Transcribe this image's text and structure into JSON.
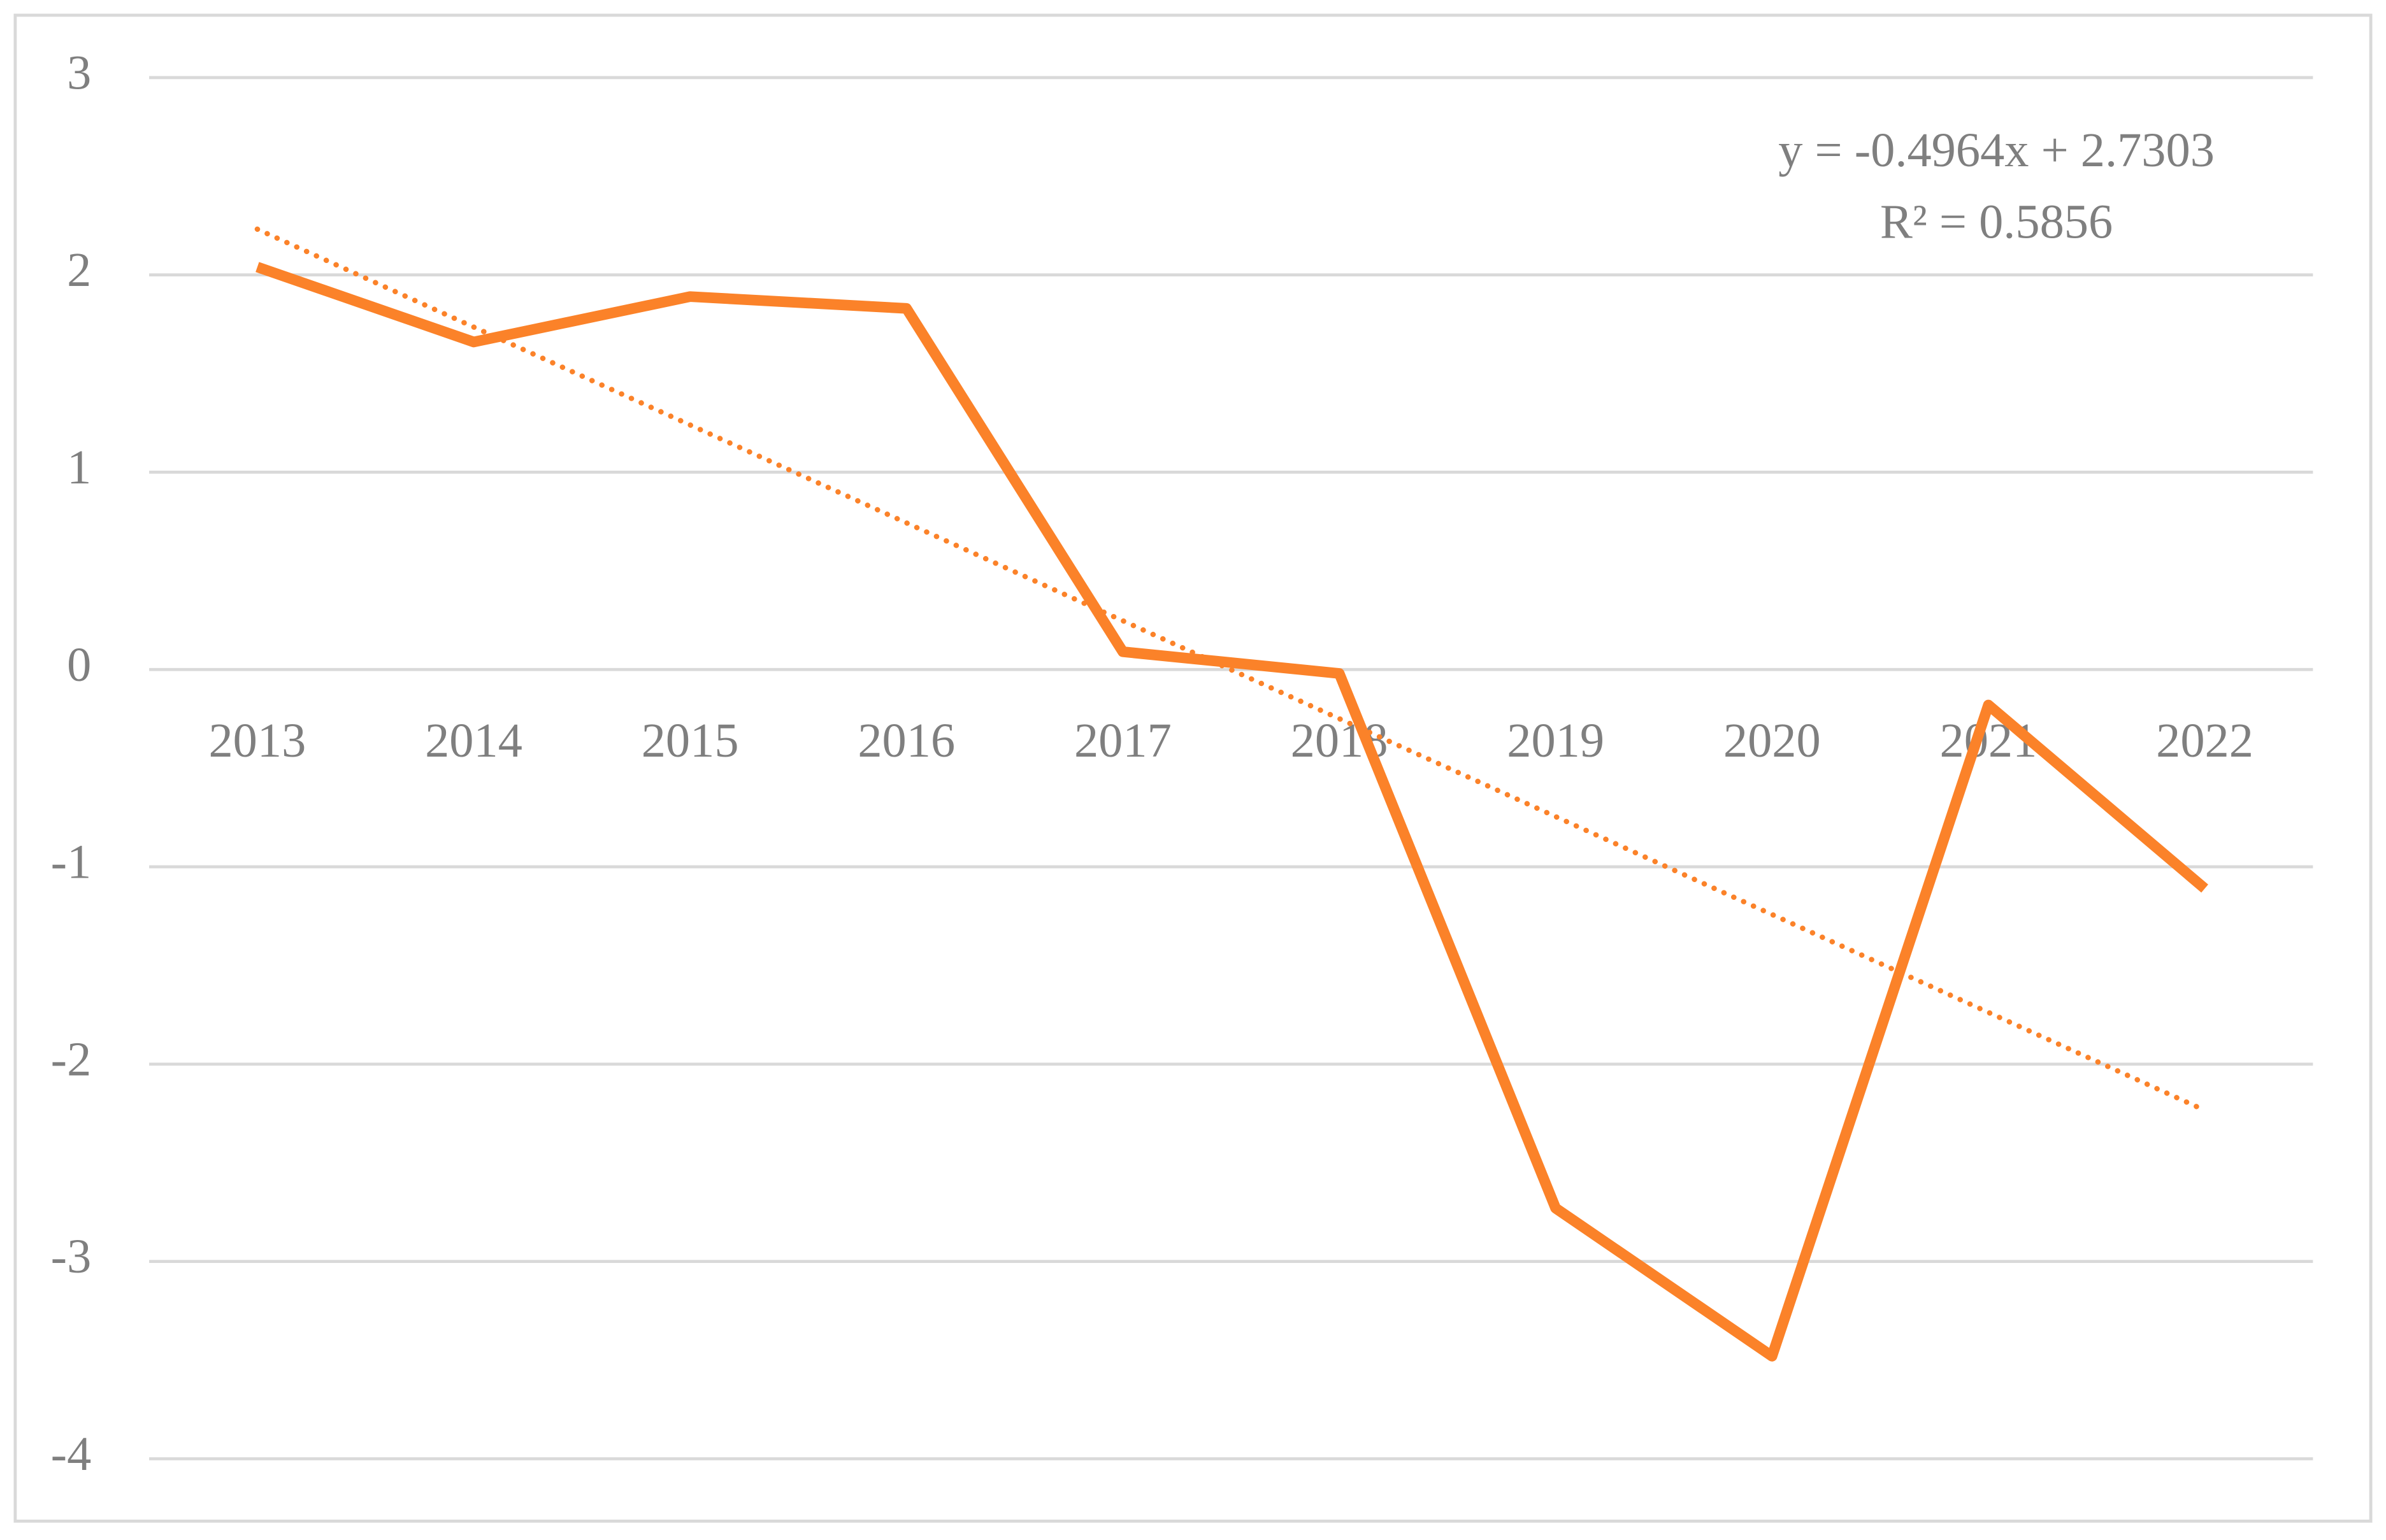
{
  "chart_data": {
    "type": "line",
    "categories": [
      "2013",
      "2014",
      "2015",
      "2016",
      "2017",
      "2018",
      "2019",
      "2020",
      "2021",
      "2022"
    ],
    "values": [
      2.04,
      1.66,
      1.89,
      1.83,
      0.09,
      -0.02,
      -2.73,
      -3.48,
      -0.18,
      -1.11
    ],
    "color": "#fb8229",
    "ylim": [
      -4,
      3
    ],
    "yticks": [
      -4,
      -3,
      -2,
      -1,
      0,
      1,
      2,
      3
    ],
    "grid": true,
    "trendline": true,
    "annotations": [
      "y = -0.4964x + 2.7303",
      "R² = 0.5856"
    ]
  }
}
